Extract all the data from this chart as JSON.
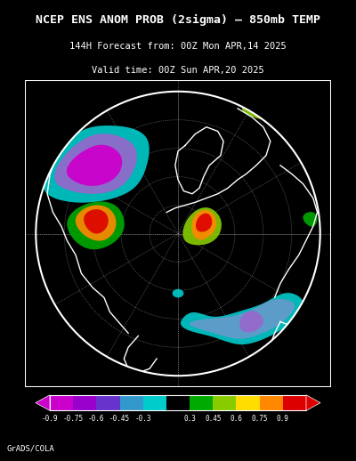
{
  "title_line1": "NCEP ENS ANOM PROB (2sigma) – 850mb TEMP",
  "title_line2": "144H Forecast from: 00Z Mon APR,14 2025",
  "title_line3": "Valid time: 00Z Sun APR,20 2025",
  "credit": "GrADS/COLA",
  "background_color": "#000000",
  "map_border_color": "#ffffff",
  "colorbar_values": [
    "-0.9",
    "-0.75",
    "-0.6",
    "-0.45",
    "-0.3",
    "0.3",
    "0.45",
    "0.6",
    "0.75",
    "0.9"
  ],
  "colorbar_colors": [
    "#cc00cc",
    "#9900cc",
    "#6633cc",
    "#3399cc",
    "#00cccc",
    "#00aa00",
    "#88cc00",
    "#ffdd00",
    "#ff8800",
    "#dd0000"
  ],
  "colorbar_arrow_left": "#cc00cc",
  "colorbar_arrow_right": "#dd0000",
  "grid_color": "#888888",
  "grid_linestyle": "dotted",
  "figsize": [
    4.0,
    5.18
  ],
  "dpi": 100
}
